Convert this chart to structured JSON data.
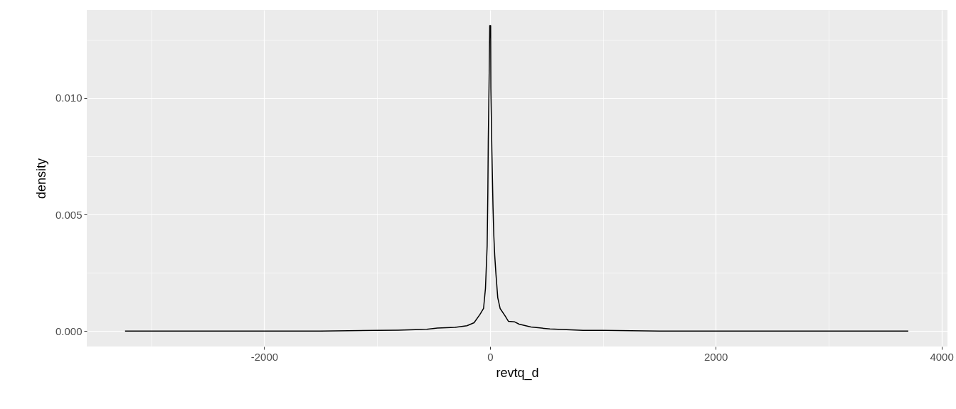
{
  "chart_data": {
    "type": "line",
    "xlabel": "revtq_d",
    "ylabel": "density",
    "x": [
      -3233,
      -2800,
      -2500,
      -2000,
      -1500,
      -1000,
      -813,
      -561,
      -466,
      -309,
      -204,
      -141,
      -88,
      -57,
      -40,
      -25,
      -19,
      -15,
      -8,
      -2,
      6,
      8,
      17,
      27,
      34,
      42,
      53,
      69,
      90,
      132,
      164,
      216,
      258,
      363,
      531,
      826,
      1000,
      1500,
      2000,
      2500,
      3000,
      3706
    ],
    "series": [
      {
        "color": "#000000",
        "values": [
          0.0,
          0.0,
          0.0,
          0.0,
          0.0,
          3e-05,
          4e-05,
          8e-05,
          0.00013,
          0.00016,
          0.00023,
          0.00036,
          0.00072,
          0.00097,
          0.00183,
          0.00366,
          0.0059,
          0.0082,
          0.01065,
          0.0131,
          0.0131,
          0.0104,
          0.0077,
          0.0053,
          0.0041,
          0.00325,
          0.00244,
          0.00143,
          0.00097,
          0.00067,
          0.00042,
          0.0004,
          0.0003,
          0.00018,
          9e-05,
          3e-05,
          3e-05,
          0.0,
          0.0,
          0.0,
          0.0,
          0.0
        ]
      }
    ],
    "xlim": [
      -3572,
      4053
    ],
    "ylim": [
      -0.00066,
      0.01377
    ],
    "xticks": [
      {
        "value": -3000,
        "label": null
      },
      -2000,
      {
        "value": -1000,
        "label": null
      },
      0,
      {
        "value": 1000,
        "label": null
      },
      2000,
      {
        "value": 3000,
        "label": null
      },
      4000
    ],
    "yticks": [
      {
        "value": 0,
        "label": "0.000"
      },
      {
        "value": 0.0025,
        "label": null
      },
      {
        "value": 0.005,
        "label": "0.005"
      },
      {
        "value": 0.0075,
        "label": null
      },
      {
        "value": 0.01,
        "label": "0.010"
      },
      {
        "value": 0.0125,
        "label": null
      }
    ],
    "grid": true,
    "marker": "none",
    "line_style": "solid"
  }
}
